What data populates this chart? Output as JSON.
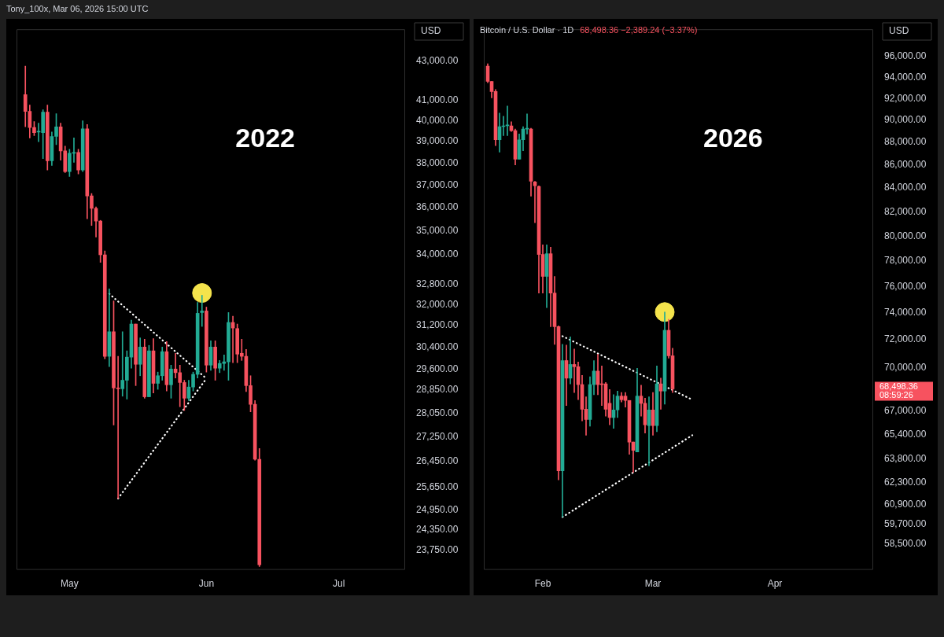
{
  "chart_data": [
    {
      "type": "candlestick",
      "title": "2022",
      "ylabel": "USD",
      "log": true,
      "annotations": [
        "Tony_100x, Mar 06, 2026 15:00 UTC"
      ],
      "xlim": [
        "2022-04-19",
        "2022-07-16"
      ],
      "xticks": [
        {
          "value": "2022-05-01",
          "label": "May"
        },
        {
          "value": "2022-06-01",
          "label": "Jun"
        },
        {
          "value": "2022-07-01",
          "label": "Jul"
        }
      ],
      "ylim": [
        23200,
        44700
      ],
      "yticks": [
        {
          "value": 23750,
          "label": "23,750.00"
        },
        {
          "value": 24350,
          "label": "24,350.00"
        },
        {
          "value": 24950,
          "label": "24,950.00"
        },
        {
          "value": 25650,
          "label": "25,650.00"
        },
        {
          "value": 26450,
          "label": "26,450.00"
        },
        {
          "value": 27250,
          "label": "27,250.00"
        },
        {
          "value": 28050,
          "label": "28,050.00"
        },
        {
          "value": 28850,
          "label": "28,850.00"
        },
        {
          "value": 29600,
          "label": "29,600.00"
        },
        {
          "value": 30400,
          "label": "30,400.00"
        },
        {
          "value": 31200,
          "label": "31,200.00"
        },
        {
          "value": 32000,
          "label": "32,000.00"
        },
        {
          "value": 32800,
          "label": "32,800.00"
        },
        {
          "value": 34000,
          "label": "34,000.00"
        },
        {
          "value": 35000,
          "label": "35,000.00"
        },
        {
          "value": 36000,
          "label": "36,000.00"
        },
        {
          "value": 37000,
          "label": "37,000.00"
        },
        {
          "value": 38000,
          "label": "38,000.00"
        },
        {
          "value": 39000,
          "label": "39,000.00"
        },
        {
          "value": 40000,
          "label": "40,000.00"
        },
        {
          "value": 41000,
          "label": "41,000.00"
        },
        {
          "value": 43000,
          "label": "43,000.00"
        }
      ],
      "x": [
        "2022-04-21",
        "2022-04-22",
        "2022-04-23",
        "2022-04-24",
        "2022-04-25",
        "2022-04-26",
        "2022-04-27",
        "2022-04-28",
        "2022-04-29",
        "2022-04-30",
        "2022-05-01",
        "2022-05-02",
        "2022-05-03",
        "2022-05-04",
        "2022-05-05",
        "2022-05-06",
        "2022-05-07",
        "2022-05-08",
        "2022-05-09",
        "2022-05-10",
        "2022-05-11",
        "2022-05-12",
        "2022-05-13",
        "2022-05-14",
        "2022-05-15",
        "2022-05-16",
        "2022-05-17",
        "2022-05-18",
        "2022-05-19",
        "2022-05-20",
        "2022-05-21",
        "2022-05-22",
        "2022-05-23",
        "2022-05-24",
        "2022-05-25",
        "2022-05-26",
        "2022-05-27",
        "2022-05-28",
        "2022-05-29",
        "2022-05-30",
        "2022-05-31",
        "2022-06-01",
        "2022-06-02",
        "2022-06-03",
        "2022-06-04",
        "2022-06-05",
        "2022-06-06",
        "2022-06-07",
        "2022-06-08",
        "2022-06-09",
        "2022-06-10",
        "2022-06-11",
        "2022-06-12",
        "2022-06-13"
      ],
      "ohlc": [
        [
          41290,
          42740,
          39710,
          40460
        ],
        [
          40460,
          40770,
          39180,
          39680
        ],
        [
          39680,
          39960,
          39290,
          39430
        ],
        [
          39460,
          39890,
          39000,
          39500
        ],
        [
          39430,
          40540,
          38210,
          40420
        ],
        [
          40420,
          40770,
          37680,
          38110
        ],
        [
          38110,
          39460,
          37890,
          39250
        ],
        [
          39250,
          40350,
          38860,
          39710
        ],
        [
          39710,
          39890,
          38140,
          38570
        ],
        [
          38570,
          38790,
          37570,
          37610
        ],
        [
          37610,
          38640,
          37390,
          38460
        ],
        [
          38460,
          39180,
          38040,
          38500
        ],
        [
          38500,
          38640,
          37500,
          37680
        ],
        [
          37680,
          40000,
          37610,
          39610
        ],
        [
          39610,
          39820,
          35520,
          36520
        ],
        [
          36520,
          36620,
          35230,
          35970
        ],
        [
          35970,
          36030,
          34740,
          35420
        ],
        [
          35420,
          35450,
          33690,
          34000
        ],
        [
          34000,
          34160,
          29970,
          30060
        ],
        [
          30060,
          32620,
          29690,
          30970
        ],
        [
          30970,
          32150,
          27660,
          28930
        ],
        [
          28930,
          30060,
          25300,
          28900
        ],
        [
          28900,
          30970,
          28640,
          29200
        ],
        [
          29200,
          30260,
          28540,
          30030
        ],
        [
          30030,
          31410,
          29630,
          31260
        ],
        [
          31260,
          31260,
          29010,
          29770
        ],
        [
          29770,
          30740,
          29360,
          30400
        ],
        [
          30400,
          30690,
          28570,
          28620
        ],
        [
          28620,
          30460,
          28620,
          30260
        ],
        [
          30260,
          30710,
          28750,
          29090
        ],
        [
          29090,
          29490,
          28880,
          29360
        ],
        [
          29360,
          30400,
          29200,
          30230
        ],
        [
          30230,
          30600,
          28820,
          29040
        ],
        [
          29040,
          29740,
          28570,
          29600
        ],
        [
          29600,
          30170,
          29280,
          29470
        ],
        [
          29470,
          29740,
          28280,
          29120
        ],
        [
          29120,
          29200,
          28150,
          28570
        ],
        [
          28570,
          29200,
          28490,
          28960
        ],
        [
          28960,
          29490,
          28820,
          29410
        ],
        [
          29410,
          32090,
          29280,
          31670
        ],
        [
          31700,
          32370,
          31170,
          31760
        ],
        [
          31760,
          31910,
          29490,
          29740
        ],
        [
          29740,
          30630,
          29550,
          30400
        ],
        [
          30400,
          30630,
          29200,
          29630
        ],
        [
          29630,
          29910,
          29470,
          29800
        ],
        [
          29800,
          30110,
          29550,
          29860
        ],
        [
          29860,
          31700,
          29200,
          31320
        ],
        [
          31320,
          31560,
          29830,
          31110
        ],
        [
          31090,
          31260,
          29830,
          30140
        ],
        [
          30170,
          30690,
          29910,
          30060
        ],
        [
          30060,
          30310,
          28800,
          29010
        ],
        [
          29010,
          29360,
          28100,
          28360
        ],
        [
          28360,
          28490,
          26500,
          26530
        ],
        [
          26530,
          26880,
          23290,
          23340
        ]
      ],
      "colors": [
        "#f7525f",
        "#f7525f",
        "#f7525f",
        "#22ab94",
        "#22ab94",
        "#f7525f",
        "#22ab94",
        "#22ab94",
        "#f7525f",
        "#f7525f",
        "#22ab94",
        "#22ab94",
        "#f7525f",
        "#22ab94",
        "#f7525f",
        "#f7525f",
        "#f7525f",
        "#f7525f",
        "#f7525f",
        "#22ab94",
        "#f7525f",
        "#f7525f",
        "#22ab94",
        "#22ab94",
        "#22ab94",
        "#f7525f",
        "#22ab94",
        "#f7525f",
        "#22ab94",
        "#f7525f",
        "#22ab94",
        "#22ab94",
        "#f7525f",
        "#22ab94",
        "#f7525f",
        "#f7525f",
        "#f7525f",
        "#22ab94",
        "#22ab94",
        "#22ab94",
        "#22ab94",
        "#f7525f",
        "#22ab94",
        "#f7525f",
        "#22ab94",
        "#22ab94",
        "#22ab94",
        "#f7525f",
        "#f7525f",
        "#f7525f",
        "#f7525f",
        "#f7525f",
        "#f7525f",
        "#f7525f"
      ],
      "series": [
        {
          "type": "line",
          "x": [
            "2022-05-10",
            "2022-06-01"
          ],
          "values": [
            32430,
            29260
          ],
          "color": "#ffffff",
          "line_style": "dotted",
          "marker": "none"
        },
        {
          "type": "line",
          "x": [
            "2022-05-12",
            "2022-06-01"
          ],
          "values": [
            25300,
            29260
          ],
          "color": "#ffffff",
          "line_style": "dotted",
          "marker": "none"
        },
        {
          "type": "scatter",
          "x": [
            "2022-05-31"
          ],
          "values": [
            32460
          ],
          "color": "#f4e34c",
          "marker": "circle"
        }
      ]
    },
    {
      "type": "candlestick",
      "title": "2026",
      "subtitle": "Bitcoin / U.S. Dollar · 1D",
      "ylabel": "USD",
      "log": true,
      "annotations": [
        "68,498.36  −2,389.24 (−3.37%)",
        "68,498.36",
        "08:59:26"
      ],
      "xlim": [
        "2026-01-17",
        "2026-04-26"
      ],
      "xticks": [
        {
          "value": "2026-02-01",
          "label": "Feb"
        },
        {
          "value": "2026-03-01",
          "label": "Mar"
        },
        {
          "value": "2026-04-01",
          "label": "Apr"
        }
      ],
      "ylim": [
        57000,
        98700
      ],
      "yticks": [
        {
          "value": 58500,
          "label": "58,500.00"
        },
        {
          "value": 59700,
          "label": "59,700.00"
        },
        {
          "value": 60900,
          "label": "60,900.00"
        },
        {
          "value": 62300,
          "label": "62,300.00"
        },
        {
          "value": 63800,
          "label": "63,800.00"
        },
        {
          "value": 65400,
          "label": "65,400.00"
        },
        {
          "value": 67000,
          "label": "67,000.00"
        },
        {
          "value": 70000,
          "label": "70,000.00"
        },
        {
          "value": 72000,
          "label": "72,000.00"
        },
        {
          "value": 74000,
          "label": "74,000.00"
        },
        {
          "value": 76000,
          "label": "76,000.00"
        },
        {
          "value": 78000,
          "label": "78,000.00"
        },
        {
          "value": 80000,
          "label": "80,000.00"
        },
        {
          "value": 82000,
          "label": "82,000.00"
        },
        {
          "value": 84000,
          "label": "84,000.00"
        },
        {
          "value": 86000,
          "label": "86,000.00"
        },
        {
          "value": 88000,
          "label": "88,000.00"
        },
        {
          "value": 90000,
          "label": "90,000.00"
        },
        {
          "value": 92000,
          "label": "92,000.00"
        },
        {
          "value": 94000,
          "label": "94,000.00"
        },
        {
          "value": 96000,
          "label": "96,000.00"
        }
      ],
      "x": [
        "2026-01-18",
        "2026-01-19",
        "2026-01-20",
        "2026-01-21",
        "2026-01-22",
        "2026-01-23",
        "2026-01-24",
        "2026-01-25",
        "2026-01-26",
        "2026-01-27",
        "2026-01-28",
        "2026-01-29",
        "2026-01-30",
        "2026-01-31",
        "2026-02-01",
        "2026-02-02",
        "2026-02-03",
        "2026-02-04",
        "2026-02-05",
        "2026-02-06",
        "2026-02-07",
        "2026-02-08",
        "2026-02-09",
        "2026-02-10",
        "2026-02-11",
        "2026-02-12",
        "2026-02-13",
        "2026-02-14",
        "2026-02-15",
        "2026-02-16",
        "2026-02-17",
        "2026-02-18",
        "2026-02-19",
        "2026-02-20",
        "2026-02-21",
        "2026-02-22",
        "2026-02-23",
        "2026-02-24",
        "2026-02-25",
        "2026-02-26",
        "2026-02-27",
        "2026-02-28",
        "2026-03-01",
        "2026-03-02",
        "2026-03-03",
        "2026-03-04",
        "2026-03-05",
        "2026-03-06"
      ],
      "ohlc": [
        [
          95080,
          95310,
          93480,
          93610
        ],
        [
          93610,
          93610,
          92060,
          92650
        ],
        [
          92650,
          92840,
          87690,
          88220
        ],
        [
          88220,
          90640,
          87130,
          89410
        ],
        [
          89410,
          90360,
          88590,
          89480
        ],
        [
          89480,
          91290,
          88590,
          89560
        ],
        [
          89480,
          89850,
          88960,
          89040
        ],
        [
          89040,
          89190,
          86000,
          86500
        ],
        [
          86500,
          88740,
          86500,
          88220
        ],
        [
          88220,
          89410,
          87250,
          89190
        ],
        [
          89190,
          90570,
          88740,
          89260
        ],
        [
          89190,
          89260,
          83310,
          84580
        ],
        [
          84520,
          84580,
          81100,
          84190
        ],
        [
          84130,
          84190,
          75500,
          78520
        ],
        [
          78520,
          79290,
          75500,
          76790
        ],
        [
          76790,
          79290,
          74390,
          78580
        ],
        [
          78580,
          79100,
          72970,
          75500
        ],
        [
          75500,
          76790,
          71670,
          72970
        ],
        [
          72970,
          73030,
          62450,
          63030
        ],
        [
          63030,
          71670,
          60140,
          70500
        ],
        [
          70500,
          71610,
          67350,
          69250
        ],
        [
          69250,
          72220,
          68850,
          70220
        ],
        [
          70220,
          71330,
          68250,
          70060
        ],
        [
          70060,
          70390,
          67750,
          68800
        ],
        [
          68800,
          69450,
          66310,
          67100
        ],
        [
          67100,
          67950,
          65350,
          66410
        ],
        [
          66410,
          69350,
          65950,
          68800
        ],
        [
          68800,
          70500,
          68100,
          69750
        ],
        [
          69750,
          70940,
          68100,
          68800
        ],
        [
          68850,
          70110,
          67350,
          68800
        ],
        [
          68850,
          68950,
          66630,
          67100
        ],
        [
          67500,
          68450,
          66040,
          66540
        ],
        [
          66540,
          68100,
          65810,
          67050
        ],
        [
          67050,
          68350,
          66540,
          68000
        ],
        [
          68000,
          68250,
          67600,
          67750
        ],
        [
          68000,
          68250,
          67250,
          67700
        ],
        [
          67700,
          67700,
          64100,
          64900
        ],
        [
          64900,
          64900,
          62930,
          64350
        ],
        [
          64250,
          69950,
          64250,
          68000
        ],
        [
          68000,
          68750,
          66630,
          67500
        ],
        [
          67500,
          67850,
          65490,
          66040
        ],
        [
          65990,
          67950,
          63360,
          67050
        ],
        [
          67050,
          68250,
          65350,
          65990
        ],
        [
          65990,
          70110,
          65580,
          68850
        ],
        [
          68850,
          69250,
          67100,
          68350
        ],
        [
          68350,
          74060,
          67450,
          72700
        ],
        [
          72700,
          73510,
          70670,
          70840
        ],
        [
          70840,
          71390,
          68250,
          68500
        ]
      ],
      "colors": [
        "#f7525f",
        "#f7525f",
        "#f7525f",
        "#22ab94",
        "#22ab94",
        "#22ab94",
        "#f7525f",
        "#f7525f",
        "#22ab94",
        "#22ab94",
        "#22ab94",
        "#f7525f",
        "#f7525f",
        "#f7525f",
        "#f7525f",
        "#22ab94",
        "#f7525f",
        "#f7525f",
        "#f7525f",
        "#22ab94",
        "#f7525f",
        "#22ab94",
        "#f7525f",
        "#f7525f",
        "#f7525f",
        "#f7525f",
        "#22ab94",
        "#22ab94",
        "#f7525f",
        "#f7525f",
        "#f7525f",
        "#f7525f",
        "#22ab94",
        "#22ab94",
        "#f7525f",
        "#f7525f",
        "#f7525f",
        "#f7525f",
        "#22ab94",
        "#f7525f",
        "#f7525f",
        "#22ab94",
        "#f7525f",
        "#22ab94",
        "#f7525f",
        "#22ab94",
        "#f7525f",
        "#f7525f"
      ],
      "series": [
        {
          "type": "line",
          "x": [
            "2026-02-06",
            "2026-03-11"
          ],
          "values": [
            72270,
            67750
          ],
          "color": "#ffffff",
          "line_style": "dotted",
          "marker": "none"
        },
        {
          "type": "line",
          "x": [
            "2026-02-06",
            "2026-03-11"
          ],
          "values": [
            60140,
            65350
          ],
          "color": "#ffffff",
          "line_style": "dotted",
          "marker": "none"
        },
        {
          "type": "scatter",
          "x": [
            "2026-03-04"
          ],
          "values": [
            74060
          ],
          "color": "#f4e34c",
          "marker": "circle"
        }
      ]
    }
  ]
}
